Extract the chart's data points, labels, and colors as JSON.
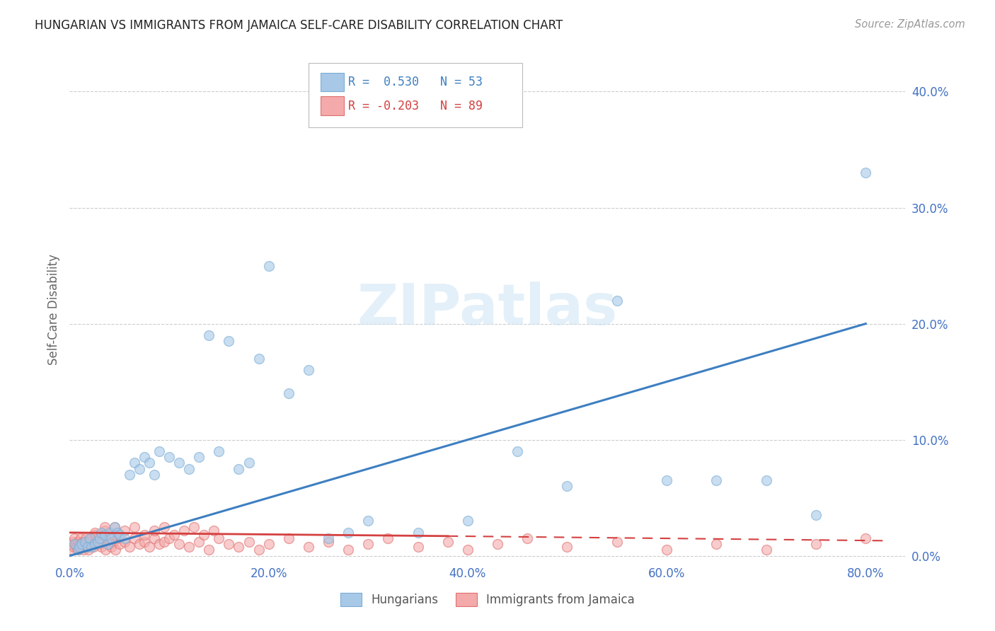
{
  "title": "HUNGARIAN VS IMMIGRANTS FROM JAMAICA SELF-CARE DISABILITY CORRELATION CHART",
  "source": "Source: ZipAtlas.com",
  "ylabel_label": "Self-Care Disability",
  "xlim": [
    0.0,
    0.84
  ],
  "ylim": [
    -0.005,
    0.43
  ],
  "legend1_R": "0.530",
  "legend1_N": "53",
  "legend2_R": "-0.203",
  "legend2_N": "89",
  "color_hungarian": "#a8c8e8",
  "color_hungarian_edge": "#7aadd4",
  "color_hungarian_line": "#3d7fc1",
  "color_jamaica": "#f4aaaa",
  "color_jamaica_edge": "#e07070",
  "color_jamaica_line": "#d44040",
  "tick_color": "#4472c4",
  "watermark": "ZIPatlas",
  "hungarian_x": [
    0.005,
    0.008,
    0.01,
    0.012,
    0.015,
    0.018,
    0.02,
    0.022,
    0.025,
    0.028,
    0.03,
    0.032,
    0.035,
    0.038,
    0.04,
    0.042,
    0.045,
    0.048,
    0.05,
    0.055,
    0.06,
    0.065,
    0.07,
    0.075,
    0.08,
    0.085,
    0.09,
    0.1,
    0.11,
    0.12,
    0.13,
    0.14,
    0.15,
    0.16,
    0.17,
    0.18,
    0.19,
    0.2,
    0.22,
    0.24,
    0.26,
    0.28,
    0.3,
    0.35,
    0.4,
    0.45,
    0.5,
    0.55,
    0.6,
    0.65,
    0.7,
    0.75,
    0.8
  ],
  "hungarian_y": [
    0.01,
    0.005,
    0.008,
    0.01,
    0.012,
    0.008,
    0.015,
    0.008,
    0.01,
    0.012,
    0.015,
    0.02,
    0.018,
    0.01,
    0.02,
    0.015,
    0.025,
    0.02,
    0.018,
    0.015,
    0.07,
    0.08,
    0.075,
    0.085,
    0.08,
    0.07,
    0.09,
    0.085,
    0.08,
    0.075,
    0.085,
    0.19,
    0.09,
    0.185,
    0.075,
    0.08,
    0.17,
    0.25,
    0.14,
    0.16,
    0.015,
    0.02,
    0.03,
    0.02,
    0.03,
    0.09,
    0.06,
    0.22,
    0.065,
    0.065,
    0.065,
    0.035,
    0.33
  ],
  "jamaica_x": [
    0.001,
    0.002,
    0.003,
    0.004,
    0.005,
    0.006,
    0.007,
    0.008,
    0.009,
    0.01,
    0.011,
    0.012,
    0.013,
    0.014,
    0.015,
    0.016,
    0.017,
    0.018,
    0.019,
    0.02,
    0.022,
    0.024,
    0.026,
    0.028,
    0.03,
    0.032,
    0.034,
    0.036,
    0.038,
    0.04,
    0.042,
    0.044,
    0.046,
    0.048,
    0.05,
    0.055,
    0.06,
    0.065,
    0.07,
    0.075,
    0.08,
    0.085,
    0.09,
    0.095,
    0.1,
    0.11,
    0.12,
    0.13,
    0.14,
    0.15,
    0.16,
    0.17,
    0.18,
    0.19,
    0.2,
    0.22,
    0.24,
    0.26,
    0.28,
    0.3,
    0.32,
    0.35,
    0.38,
    0.4,
    0.43,
    0.46,
    0.5,
    0.55,
    0.6,
    0.65,
    0.7,
    0.75,
    0.8,
    0.025,
    0.035,
    0.045,
    0.025,
    0.035,
    0.045,
    0.055,
    0.065,
    0.075,
    0.085,
    0.095,
    0.105,
    0.115,
    0.125,
    0.135,
    0.145
  ],
  "jamaica_y": [
    0.01,
    0.005,
    0.012,
    0.008,
    0.015,
    0.01,
    0.008,
    0.012,
    0.005,
    0.01,
    0.015,
    0.008,
    0.012,
    0.005,
    0.01,
    0.015,
    0.008,
    0.012,
    0.005,
    0.01,
    0.015,
    0.008,
    0.012,
    0.015,
    0.01,
    0.008,
    0.012,
    0.005,
    0.015,
    0.01,
    0.008,
    0.012,
    0.005,
    0.015,
    0.01,
    0.012,
    0.008,
    0.015,
    0.01,
    0.012,
    0.008,
    0.015,
    0.01,
    0.012,
    0.015,
    0.01,
    0.008,
    0.012,
    0.005,
    0.015,
    0.01,
    0.008,
    0.012,
    0.005,
    0.01,
    0.015,
    0.008,
    0.012,
    0.005,
    0.01,
    0.015,
    0.008,
    0.012,
    0.005,
    0.01,
    0.015,
    0.008,
    0.012,
    0.005,
    0.01,
    0.005,
    0.01,
    0.015,
    0.018,
    0.022,
    0.025,
    0.02,
    0.025,
    0.018,
    0.022,
    0.025,
    0.018,
    0.022,
    0.025,
    0.018,
    0.022,
    0.025,
    0.018,
    0.022
  ]
}
